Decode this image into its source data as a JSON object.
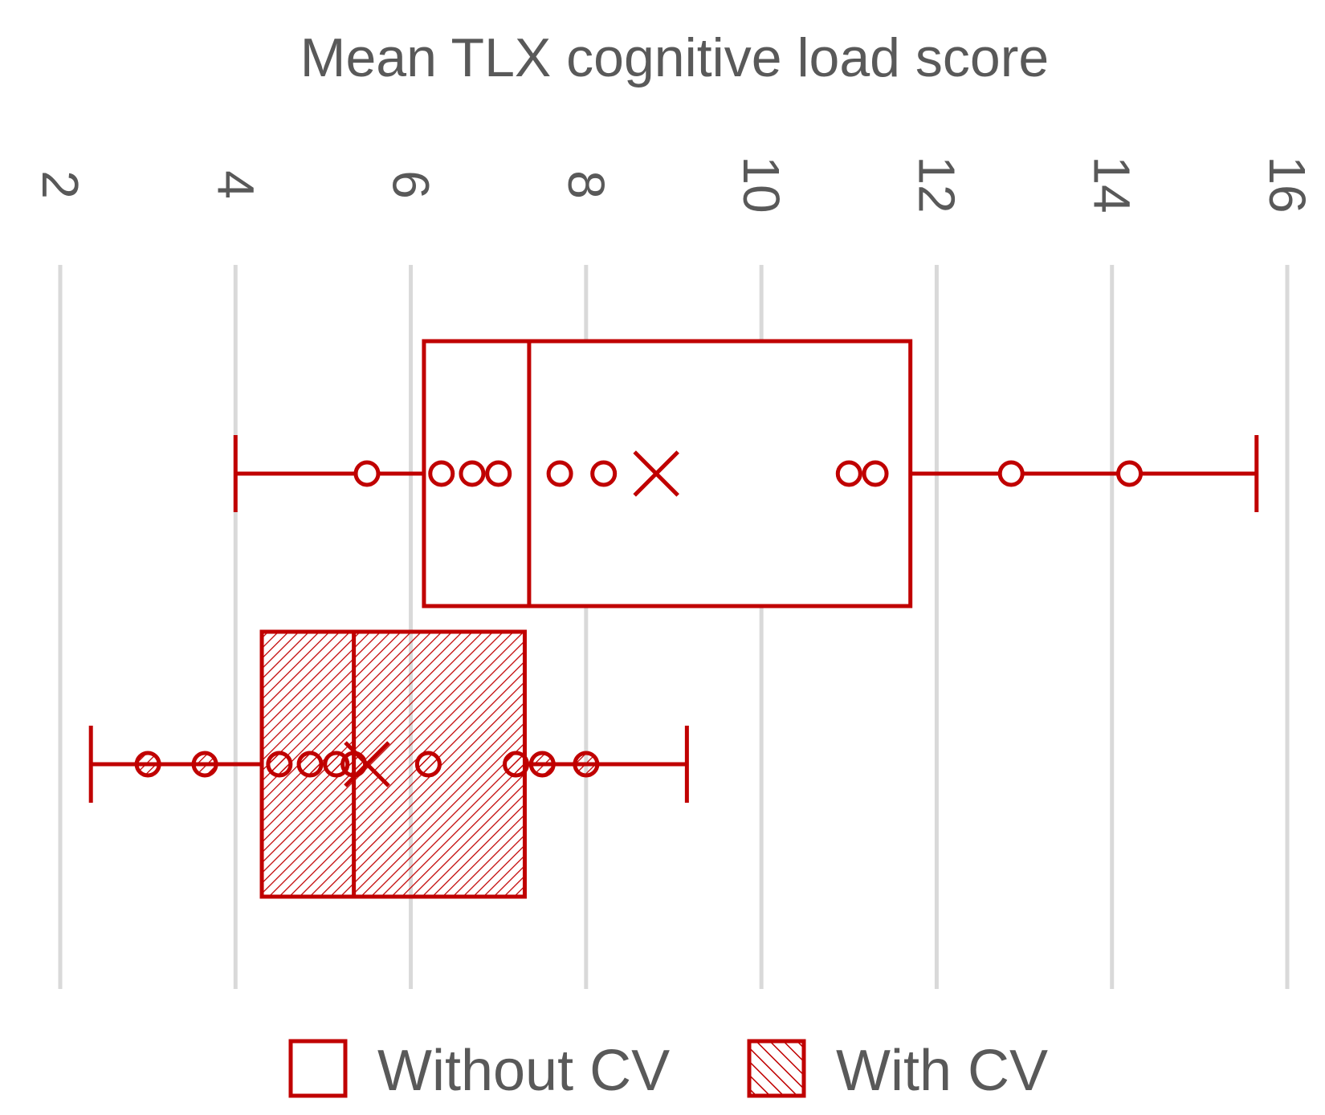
{
  "chart_data": {
    "type": "box",
    "title": "Mean TLX cognitive load score",
    "orientation": "horizontal",
    "axis": {
      "ticks": [
        "2",
        "4",
        "6",
        "8",
        "10",
        "12",
        "14",
        "16"
      ],
      "tick_values": [
        2,
        4,
        6,
        8,
        10,
        12,
        14,
        16
      ],
      "range": [
        2,
        16
      ],
      "tick_label_rotation": "rotated 90 degrees clockwise",
      "position": "top",
      "grid": true
    },
    "legend_position": "bottom",
    "series": [
      {
        "name": "Without CV",
        "fill": "none",
        "whisker_min": 4.0,
        "q1": 6.15,
        "median": 7.35,
        "q3": 11.7,
        "whisker_max": 15.65,
        "mean": 8.8,
        "points": [
          5.5,
          6.35,
          6.7,
          7.0,
          7.7,
          8.2,
          11.0,
          11.3,
          12.85,
          14.2
        ]
      },
      {
        "name": "With CV",
        "fill": "hatched",
        "whisker_min": 2.35,
        "q1": 4.3,
        "median": 5.35,
        "q3": 7.3,
        "whisker_max": 9.15,
        "mean": 5.5,
        "points": [
          3.0,
          3.65,
          4.5,
          4.85,
          5.15,
          5.35,
          6.2,
          7.2,
          7.5,
          8.0
        ]
      }
    ],
    "colors": {
      "series": "#c00000",
      "grid": "#d9d9d9",
      "text": "#595959"
    }
  }
}
